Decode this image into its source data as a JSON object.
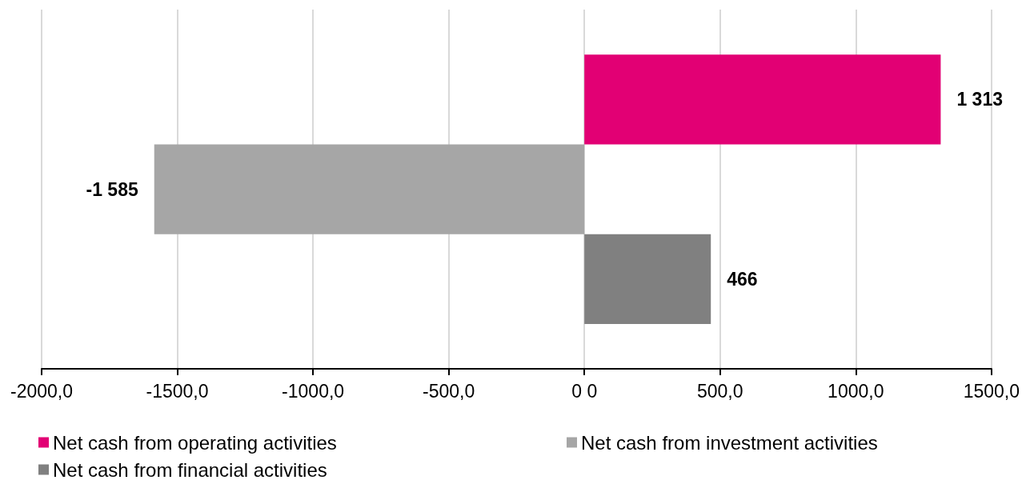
{
  "chart_data": {
    "type": "bar",
    "orientation": "horizontal",
    "categories": [
      null
    ],
    "series": [
      {
        "name": "Net cash from operating activities",
        "color": "#e20074",
        "values": [
          1313
        ],
        "value_labels": [
          "1 313"
        ]
      },
      {
        "name": "Net cash from investment activities",
        "color": "#a6a6a6",
        "values": [
          -1585
        ],
        "value_labels": [
          "-1 585"
        ]
      },
      {
        "name": "Net cash from financial activities",
        "color": "#808080",
        "values": [
          466
        ],
        "value_labels": [
          "466"
        ]
      }
    ],
    "xlim": [
      -2000,
      1500
    ],
    "xticks": [
      {
        "value": -2000,
        "label": "-2000,0"
      },
      {
        "value": -1500,
        "label": "-1500,0"
      },
      {
        "value": -1000,
        "label": "-1000,0"
      },
      {
        "value": -500,
        "label": "-500,0"
      },
      {
        "value": 0,
        "label": "0 0"
      },
      {
        "value": 500,
        "label": "500,0"
      },
      {
        "value": 1000,
        "label": "1000,0"
      },
      {
        "value": 1500,
        "label": "1500,0"
      }
    ],
    "grid": "x",
    "legend": "bottom"
  }
}
